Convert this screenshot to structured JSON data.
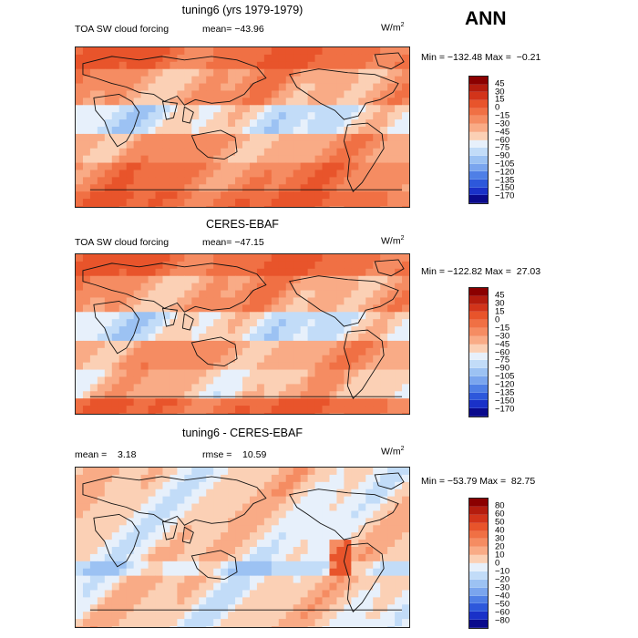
{
  "season": "ANN",
  "panels": [
    {
      "title": "tuning6 (yrs 1979-1979)",
      "variable": "TOA SW cloud forcing",
      "stat_text": "mean= −43.96",
      "units": "W/m",
      "units_sup": "2",
      "minmax_text": "Min = −132.48 Max =  −0.21",
      "colorbar": {
        "labels": [
          "45",
          "30",
          "15",
          "0",
          "−15",
          "−30",
          "−45",
          "−60",
          "−75",
          "−90",
          "−105",
          "−120",
          "−135",
          "−150",
          "−170"
        ],
        "colors": [
          "#8b0000",
          "#b41c0e",
          "#d2341a",
          "#e8542b",
          "#f07044",
          "#f58c62",
          "#f9ab86",
          "#fbd0b5",
          "#e7f0fb",
          "#c2dcf8",
          "#9cc2f3",
          "#7aa5ee",
          "#4f7fe6",
          "#2d58db",
          "#1a31c8",
          "#0a0a8c"
        ]
      },
      "field": "control"
    },
    {
      "title": "CERES-EBAF",
      "variable": "TOA SW cloud forcing",
      "stat_text": "mean= −47.15",
      "units": "W/m",
      "units_sup": "2",
      "minmax_text": "Min = −122.82 Max =  27.03",
      "colorbar": {
        "labels": [
          "45",
          "30",
          "15",
          "0",
          "−15",
          "−30",
          "−45",
          "−60",
          "−75",
          "−90",
          "−105",
          "−120",
          "−135",
          "−150",
          "−170"
        ],
        "colors": [
          "#8b0000",
          "#b41c0e",
          "#d2341a",
          "#e8542b",
          "#f07044",
          "#f58c62",
          "#f9ab86",
          "#fbd0b5",
          "#e7f0fb",
          "#c2dcf8",
          "#9cc2f3",
          "#7aa5ee",
          "#4f7fe6",
          "#2d58db",
          "#1a31c8",
          "#0a0a8c"
        ]
      },
      "field": "obs"
    },
    {
      "title": "tuning6 - CERES-EBAF",
      "mean_text": "mean =    3.18",
      "rmse_text": "rmse =    10.59",
      "units": "W/m",
      "units_sup": "2",
      "minmax_text": "Min = −53.79 Max =  82.75",
      "colorbar": {
        "labels": [
          "80",
          "60",
          "50",
          "40",
          "30",
          "20",
          "10",
          "0",
          "−10",
          "−20",
          "−30",
          "−40",
          "−50",
          "−60",
          "−80"
        ],
        "colors": [
          "#8b0000",
          "#b41c0e",
          "#d2341a",
          "#e8542b",
          "#f07044",
          "#f58c62",
          "#f9ab86",
          "#fbd0b5",
          "#e7f0fb",
          "#c2dcf8",
          "#9cc2f3",
          "#7aa5ee",
          "#4f7fe6",
          "#2d58db",
          "#1a31c8",
          "#0a0a8c"
        ]
      },
      "field": "diff"
    }
  ]
}
